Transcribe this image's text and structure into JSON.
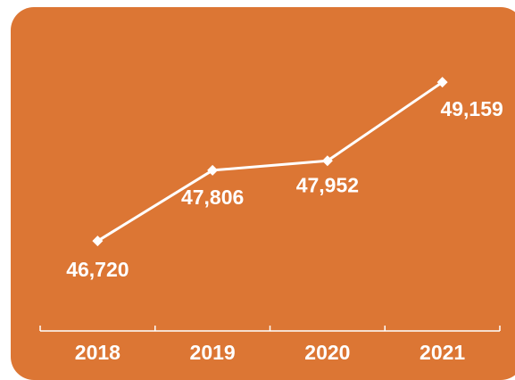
{
  "chart_data": {
    "type": "line",
    "categories": [
      "2018",
      "2019",
      "2020",
      "2021"
    ],
    "series": [
      {
        "values": [
          46720,
          47806,
          47952,
          49159
        ]
      }
    ],
    "data_labels": [
      "46,720",
      "47,806",
      "47,952",
      "49,159"
    ],
    "title": "",
    "xlabel": "",
    "ylabel": "",
    "ylim": [
      45900,
      49600
    ],
    "grid": false,
    "legend": "none",
    "marker": "diamond"
  },
  "colors": {
    "background": "#DC7634",
    "line": "#FFFFFF",
    "text": "#FFFFFF"
  }
}
